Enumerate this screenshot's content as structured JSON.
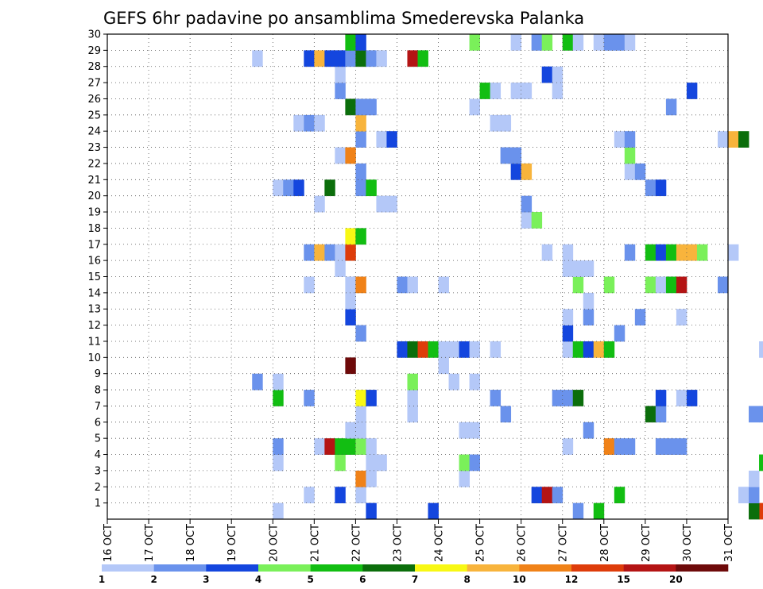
{
  "chart_data": {
    "type": "heatmap",
    "title": "GEFS 6hr padavine po ansamblima Smederevska Palanka",
    "xlabel": "",
    "ylabel": "",
    "x_tick_labels": [
      "16 OCT",
      "17 OCT",
      "18 OCT",
      "19 OCT",
      "20 OCT",
      "21 OCT",
      "22 OCT",
      "23 OCT",
      "24 OCT",
      "25 OCT",
      "26 OCT",
      "27 OCT",
      "28 OCT",
      "29 OCT",
      "30 OCT",
      "31 OCT"
    ],
    "y_tick_labels": [
      "1",
      "2",
      "3",
      "4",
      "5",
      "6",
      "7",
      "8",
      "9",
      "10",
      "11",
      "12",
      "13",
      "14",
      "15",
      "16",
      "17",
      "18",
      "19",
      "20",
      "21",
      "22",
      "23",
      "24",
      "25",
      "26",
      "27",
      "28",
      "29",
      "30"
    ],
    "grid": true,
    "colorbar": {
      "labels": [
        "1",
        "2",
        "3",
        "4",
        "5",
        "6",
        "7",
        "8",
        "10",
        "12",
        "15",
        "20"
      ],
      "colors": [
        "#b4c8f8",
        "#6a92ec",
        "#1446de",
        "#7af05a",
        "#12be12",
        "#0b6e0b",
        "#f8f814",
        "#f8b43c",
        "#f08218",
        "#de3c0a",
        "#b41414",
        "#6e0a0a"
      ]
    },
    "cells": [
      {
        "t": "10-31 18",
        "m": 1,
        "c": "#de3c0a"
      },
      {
        "t": "10-31 12",
        "m": 1,
        "c": "#0b6e0b"
      },
      {
        "t": "10-22 06",
        "m": 1,
        "c": "#1446de"
      },
      {
        "t": "10-23 18",
        "m": 1,
        "c": "#1446de"
      },
      {
        "t": "10-20 00",
        "m": 1,
        "c": "#b4c8f8"
      },
      {
        "t": "10-27 06",
        "m": 1,
        "c": "#6a92ec"
      },
      {
        "t": "10-27 18",
        "m": 1,
        "c": "#12be12"
      },
      {
        "t": "10-20 18",
        "m": 2,
        "c": "#b4c8f8"
      },
      {
        "t": "10-21 12",
        "m": 2,
        "c": "#1446de"
      },
      {
        "t": "10-22 00",
        "m": 2,
        "c": "#b4c8f8"
      },
      {
        "t": "10-26 06",
        "m": 2,
        "c": "#1446de"
      },
      {
        "t": "10-26 12",
        "m": 2,
        "c": "#b41414"
      },
      {
        "t": "10-26 18",
        "m": 2,
        "c": "#6a92ec"
      },
      {
        "t": "10-28 06",
        "m": 2,
        "c": "#12be12"
      },
      {
        "t": "10-31 06",
        "m": 2,
        "c": "#b4c8f8"
      },
      {
        "t": "10-31 12",
        "m": 2,
        "c": "#6a92ec"
      },
      {
        "t": "10-22 00",
        "m": 3,
        "c": "#f08218"
      },
      {
        "t": "10-22 06",
        "m": 3,
        "c": "#b4c8f8"
      },
      {
        "t": "10-24 12",
        "m": 3,
        "c": "#b4c8f8"
      },
      {
        "t": "10-31 12",
        "m": 3,
        "c": "#b4c8f8"
      },
      {
        "t": "10-20 00",
        "m": 4,
        "c": "#b4c8f8"
      },
      {
        "t": "10-21 12",
        "m": 4,
        "c": "#7af05a"
      },
      {
        "t": "10-22 06",
        "m": 4,
        "c": "#b4c8f8"
      },
      {
        "t": "10-22 12",
        "m": 4,
        "c": "#b4c8f8"
      },
      {
        "t": "10-24 12",
        "m": 4,
        "c": "#7af05a"
      },
      {
        "t": "10-24 18",
        "m": 4,
        "c": "#6a92ec"
      },
      {
        "t": "10-31 18",
        "m": 4,
        "c": "#12be12"
      },
      {
        "t": "10-20 00",
        "m": 5,
        "c": "#6a92ec"
      },
      {
        "t": "10-21 00",
        "m": 5,
        "c": "#b4c8f8"
      },
      {
        "t": "10-21 06",
        "m": 5,
        "c": "#b41414"
      },
      {
        "t": "10-21 12",
        "m": 5,
        "c": "#12be12"
      },
      {
        "t": "10-21 18",
        "m": 5,
        "c": "#12be12"
      },
      {
        "t": "10-22 00",
        "m": 5,
        "c": "#7af05a"
      },
      {
        "t": "10-22 06",
        "m": 5,
        "c": "#b4c8f8"
      },
      {
        "t": "10-27 00",
        "m": 5,
        "c": "#b4c8f8"
      },
      {
        "t": "10-28 00",
        "m": 5,
        "c": "#f08218"
      },
      {
        "t": "10-28 06",
        "m": 5,
        "c": "#6a92ec"
      },
      {
        "t": "10-28 12",
        "m": 5,
        "c": "#6a92ec"
      },
      {
        "t": "10-29 06",
        "m": 5,
        "c": "#6a92ec"
      },
      {
        "t": "10-29 12",
        "m": 5,
        "c": "#6a92ec"
      },
      {
        "t": "10-29 18",
        "m": 5,
        "c": "#6a92ec"
      },
      {
        "t": "10-21 18",
        "m": 6,
        "c": "#b4c8f8"
      },
      {
        "t": "10-22 00",
        "m": 6,
        "c": "#b4c8f8"
      },
      {
        "t": "10-24 12",
        "m": 6,
        "c": "#b4c8f8"
      },
      {
        "t": "10-24 18",
        "m": 6,
        "c": "#b4c8f8"
      },
      {
        "t": "10-27 12",
        "m": 6,
        "c": "#6a92ec"
      },
      {
        "t": "10-22 00",
        "m": 7,
        "c": "#b4c8f8"
      },
      {
        "t": "10-23 06",
        "m": 7,
        "c": "#b4c8f8"
      },
      {
        "t": "10-25 12",
        "m": 7,
        "c": "#6a92ec"
      },
      {
        "t": "10-29 00",
        "m": 7,
        "c": "#0b6e0b"
      },
      {
        "t": "10-29 06",
        "m": 7,
        "c": "#6a92ec"
      },
      {
        "t": "10-31 12",
        "m": 7,
        "c": "#6a92ec"
      },
      {
        "t": "10-31 18",
        "m": 7,
        "c": "#6a92ec"
      },
      {
        "t": "10-20 00",
        "m": 8,
        "c": "#12be12"
      },
      {
        "t": "10-20 18",
        "m": 8,
        "c": "#6a92ec"
      },
      {
        "t": "10-22 00",
        "m": 8,
        "c": "#f8f814"
      },
      {
        "t": "10-22 06",
        "m": 8,
        "c": "#1446de"
      },
      {
        "t": "10-23 06",
        "m": 8,
        "c": "#b4c8f8"
      },
      {
        "t": "10-25 06",
        "m": 8,
        "c": "#6a92ec"
      },
      {
        "t": "10-26 18",
        "m": 8,
        "c": "#6a92ec"
      },
      {
        "t": "10-27 00",
        "m": 8,
        "c": "#6a92ec"
      },
      {
        "t": "10-27 06",
        "m": 8,
        "c": "#0b6e0b"
      },
      {
        "t": "10-29 06",
        "m": 8,
        "c": "#1446de"
      },
      {
        "t": "10-29 18",
        "m": 8,
        "c": "#b4c8f8"
      },
      {
        "t": "10-30 00",
        "m": 8,
        "c": "#1446de"
      },
      {
        "t": "10-19 12",
        "m": 9,
        "c": "#6a92ec"
      },
      {
        "t": "10-20 00",
        "m": 9,
        "c": "#b4c8f8"
      },
      {
        "t": "10-23 06",
        "m": 9,
        "c": "#7af05a"
      },
      {
        "t": "10-24 06",
        "m": 9,
        "c": "#b4c8f8"
      },
      {
        "t": "10-24 18",
        "m": 9,
        "c": "#b4c8f8"
      },
      {
        "t": "10-21 18",
        "m": 10,
        "c": "#6e0a0a"
      },
      {
        "t": "10-24 00",
        "m": 10,
        "c": "#b4c8f8"
      },
      {
        "t": "10-23 00",
        "m": 11,
        "c": "#1446de"
      },
      {
        "t": "10-23 06",
        "m": 11,
        "c": "#0b6e0b"
      },
      {
        "t": "10-23 12",
        "m": 11,
        "c": "#de3c0a"
      },
      {
        "t": "10-23 18",
        "m": 11,
        "c": "#12be12"
      },
      {
        "t": "10-24 00",
        "m": 11,
        "c": "#b4c8f8"
      },
      {
        "t": "10-24 06",
        "m": 11,
        "c": "#b4c8f8"
      },
      {
        "t": "10-24 12",
        "m": 11,
        "c": "#1446de"
      },
      {
        "t": "10-24 18",
        "m": 11,
        "c": "#b4c8f8"
      },
      {
        "t": "10-25 06",
        "m": 11,
        "c": "#b4c8f8"
      },
      {
        "t": "10-27 00",
        "m": 11,
        "c": "#b4c8f8"
      },
      {
        "t": "10-27 06",
        "m": 11,
        "c": "#12be12"
      },
      {
        "t": "10-27 12",
        "m": 11,
        "c": "#1446de"
      },
      {
        "t": "10-27 18",
        "m": 11,
        "c": "#f8b43c"
      },
      {
        "t": "10-28 00",
        "m": 11,
        "c": "#12be12"
      },
      {
        "t": "10-31 18",
        "m": 11,
        "c": "#b4c8f8"
      },
      {
        "t": "10-22 00",
        "m": 12,
        "c": "#6a92ec"
      },
      {
        "t": "10-27 00",
        "m": 12,
        "c": "#1446de"
      },
      {
        "t": "10-28 06",
        "m": 12,
        "c": "#6a92ec"
      },
      {
        "t": "10-21 18",
        "m": 13,
        "c": "#1446de"
      },
      {
        "t": "10-27 00",
        "m": 13,
        "c": "#b4c8f8"
      },
      {
        "t": "10-27 12",
        "m": 13,
        "c": "#6a92ec"
      },
      {
        "t": "10-28 18",
        "m": 13,
        "c": "#6a92ec"
      },
      {
        "t": "10-29 18",
        "m": 13,
        "c": "#b4c8f8"
      },
      {
        "t": "10-21 18",
        "m": 14,
        "c": "#b4c8f8"
      },
      {
        "t": "10-27 12",
        "m": 14,
        "c": "#b4c8f8"
      },
      {
        "t": "10-20 18",
        "m": 15,
        "c": "#b4c8f8"
      },
      {
        "t": "10-21 18",
        "m": 15,
        "c": "#b4c8f8"
      },
      {
        "t": "10-22 00",
        "m": 15,
        "c": "#f08218"
      },
      {
        "t": "10-23 00",
        "m": 15,
        "c": "#6a92ec"
      },
      {
        "t": "10-23 06",
        "m": 15,
        "c": "#b4c8f8"
      },
      {
        "t": "10-24 00",
        "m": 15,
        "c": "#b4c8f8"
      },
      {
        "t": "10-27 06",
        "m": 15,
        "c": "#7af05a"
      },
      {
        "t": "10-28 00",
        "m": 15,
        "c": "#7af05a"
      },
      {
        "t": "10-29 00",
        "m": 15,
        "c": "#7af05a"
      },
      {
        "t": "10-29 06",
        "m": 15,
        "c": "#b4c8f8"
      },
      {
        "t": "10-29 12",
        "m": 15,
        "c": "#12be12"
      },
      {
        "t": "10-29 18",
        "m": 15,
        "c": "#b41414"
      },
      {
        "t": "10-30 18",
        "m": 15,
        "c": "#6a92ec"
      },
      {
        "t": "10-21 12",
        "m": 16,
        "c": "#b4c8f8"
      },
      {
        "t": "10-27 00",
        "m": 16,
        "c": "#b4c8f8"
      },
      {
        "t": "10-27 06",
        "m": 16,
        "c": "#b4c8f8"
      },
      {
        "t": "10-27 12",
        "m": 16,
        "c": "#b4c8f8"
      },
      {
        "t": "10-20 18",
        "m": 17,
        "c": "#6a92ec"
      },
      {
        "t": "10-21 00",
        "m": 17,
        "c": "#f8b43c"
      },
      {
        "t": "10-21 06",
        "m": 17,
        "c": "#6a92ec"
      },
      {
        "t": "10-21 12",
        "m": 17,
        "c": "#b4c8f8"
      },
      {
        "t": "10-21 18",
        "m": 17,
        "c": "#de3c0a"
      },
      {
        "t": "10-26 12",
        "m": 17,
        "c": "#b4c8f8"
      },
      {
        "t": "10-27 00",
        "m": 17,
        "c": "#b4c8f8"
      },
      {
        "t": "10-28 12",
        "m": 17,
        "c": "#6a92ec"
      },
      {
        "t": "10-29 00",
        "m": 17,
        "c": "#12be12"
      },
      {
        "t": "10-29 06",
        "m": 17,
        "c": "#1446de"
      },
      {
        "t": "10-29 12",
        "m": 17,
        "c": "#12be12"
      },
      {
        "t": "10-29 18",
        "m": 17,
        "c": "#f8b43c"
      },
      {
        "t": "10-30 00",
        "m": 17,
        "c": "#f8b43c"
      },
      {
        "t": "10-30 06",
        "m": 17,
        "c": "#7af05a"
      },
      {
        "t": "10-31 00",
        "m": 17,
        "c": "#b4c8f8"
      },
      {
        "t": "10-21 18",
        "m": 18,
        "c": "#f8f814"
      },
      {
        "t": "10-22 00",
        "m": 18,
        "c": "#12be12"
      },
      {
        "t": "10-26 00",
        "m": 19,
        "c": "#b4c8f8"
      },
      {
        "t": "10-26 06",
        "m": 19,
        "c": "#7af05a"
      },
      {
        "t": "10-21 00",
        "m": 20,
        "c": "#b4c8f8"
      },
      {
        "t": "10-22 12",
        "m": 20,
        "c": "#b4c8f8"
      },
      {
        "t": "10-22 18",
        "m": 20,
        "c": "#b4c8f8"
      },
      {
        "t": "10-26 00",
        "m": 20,
        "c": "#6a92ec"
      },
      {
        "t": "10-20 00",
        "m": 21,
        "c": "#b4c8f8"
      },
      {
        "t": "10-20 06",
        "m": 21,
        "c": "#6a92ec"
      },
      {
        "t": "10-20 12",
        "m": 21,
        "c": "#1446de"
      },
      {
        "t": "10-21 06",
        "m": 21,
        "c": "#0b6e0b"
      },
      {
        "t": "10-22 00",
        "m": 21,
        "c": "#6a92ec"
      },
      {
        "t": "10-22 06",
        "m": 21,
        "c": "#12be12"
      },
      {
        "t": "10-29 00",
        "m": 21,
        "c": "#6a92ec"
      },
      {
        "t": "10-29 06",
        "m": 21,
        "c": "#1446de"
      },
      {
        "t": "10-22 00",
        "m": 22,
        "c": "#6a92ec"
      },
      {
        "t": "10-25 18",
        "m": 22,
        "c": "#1446de"
      },
      {
        "t": "10-26 00",
        "m": 22,
        "c": "#f8b43c"
      },
      {
        "t": "10-28 12",
        "m": 22,
        "c": "#b4c8f8"
      },
      {
        "t": "10-28 18",
        "m": 22,
        "c": "#6a92ec"
      },
      {
        "t": "10-21 12",
        "m": 23,
        "c": "#b4c8f8"
      },
      {
        "t": "10-21 18",
        "m": 23,
        "c": "#f08218"
      },
      {
        "t": "10-25 12",
        "m": 23,
        "c": "#6a92ec"
      },
      {
        "t": "10-25 18",
        "m": 23,
        "c": "#6a92ec"
      },
      {
        "t": "10-28 12",
        "m": 23,
        "c": "#7af05a"
      },
      {
        "t": "10-22 00",
        "m": 24,
        "c": "#6a92ec"
      },
      {
        "t": "10-22 12",
        "m": 24,
        "c": "#b4c8f8"
      },
      {
        "t": "10-22 18",
        "m": 24,
        "c": "#1446de"
      },
      {
        "t": "10-28 06",
        "m": 24,
        "c": "#b4c8f8"
      },
      {
        "t": "10-28 12",
        "m": 24,
        "c": "#6a92ec"
      },
      {
        "t": "10-30 18",
        "m": 24,
        "c": "#b4c8f8"
      },
      {
        "t": "10-31 00",
        "m": 24,
        "c": "#f8b43c"
      },
      {
        "t": "10-31 06",
        "m": 24,
        "c": "#0b6e0b"
      },
      {
        "t": "10-20 12",
        "m": 25,
        "c": "#b4c8f8"
      },
      {
        "t": "10-20 18",
        "m": 25,
        "c": "#6a92ec"
      },
      {
        "t": "10-21 00",
        "m": 25,
        "c": "#b4c8f8"
      },
      {
        "t": "10-22 00",
        "m": 25,
        "c": "#f8b43c"
      },
      {
        "t": "10-25 06",
        "m": 25,
        "c": "#b4c8f8"
      },
      {
        "t": "10-25 12",
        "m": 25,
        "c": "#b4c8f8"
      },
      {
        "t": "10-21 18",
        "m": 26,
        "c": "#0b6e0b"
      },
      {
        "t": "10-22 00",
        "m": 26,
        "c": "#6a92ec"
      },
      {
        "t": "10-22 06",
        "m": 26,
        "c": "#6a92ec"
      },
      {
        "t": "10-24 18",
        "m": 26,
        "c": "#b4c8f8"
      },
      {
        "t": "10-29 12",
        "m": 26,
        "c": "#6a92ec"
      },
      {
        "t": "10-21 12",
        "m": 27,
        "c": "#6a92ec"
      },
      {
        "t": "10-25 00",
        "m": 27,
        "c": "#12be12"
      },
      {
        "t": "10-25 06",
        "m": 27,
        "c": "#b4c8f8"
      },
      {
        "t": "10-25 18",
        "m": 27,
        "c": "#b4c8f8"
      },
      {
        "t": "10-26 00",
        "m": 27,
        "c": "#b4c8f8"
      },
      {
        "t": "10-26 18",
        "m": 27,
        "c": "#b4c8f8"
      },
      {
        "t": "10-30 00",
        "m": 27,
        "c": "#1446de"
      },
      {
        "t": "10-21 12",
        "m": 28,
        "c": "#b4c8f8"
      },
      {
        "t": "10-26 12",
        "m": 28,
        "c": "#1446de"
      },
      {
        "t": "10-26 18",
        "m": 28,
        "c": "#b4c8f8"
      },
      {
        "t": "10-19 12",
        "m": 29,
        "c": "#b4c8f8"
      },
      {
        "t": "10-20 18",
        "m": 29,
        "c": "#1446de"
      },
      {
        "t": "10-21 00",
        "m": 29,
        "c": "#f8b43c"
      },
      {
        "t": "10-21 06",
        "m": 29,
        "c": "#1446de"
      },
      {
        "t": "10-21 12",
        "m": 29,
        "c": "#1446de"
      },
      {
        "t": "10-21 18",
        "m": 29,
        "c": "#6a92ec"
      },
      {
        "t": "10-22 00",
        "m": 29,
        "c": "#0b6e0b"
      },
      {
        "t": "10-22 06",
        "m": 29,
        "c": "#6a92ec"
      },
      {
        "t": "10-22 12",
        "m": 29,
        "c": "#b4c8f8"
      },
      {
        "t": "10-23 06",
        "m": 29,
        "c": "#b41414"
      },
      {
        "t": "10-23 12",
        "m": 29,
        "c": "#12be12"
      },
      {
        "t": "10-21 18",
        "m": 30,
        "c": "#12be12"
      },
      {
        "t": "10-22 00",
        "m": 30,
        "c": "#1446de"
      },
      {
        "t": "10-24 18",
        "m": 30,
        "c": "#7af05a"
      },
      {
        "t": "10-25 18",
        "m": 30,
        "c": "#b4c8f8"
      },
      {
        "t": "10-26 06",
        "m": 30,
        "c": "#6a92ec"
      },
      {
        "t": "10-26 12",
        "m": 30,
        "c": "#7af05a"
      },
      {
        "t": "10-27 00",
        "m": 30,
        "c": "#12be12"
      },
      {
        "t": "10-27 06",
        "m": 30,
        "c": "#b4c8f8"
      },
      {
        "t": "10-27 18",
        "m": 30,
        "c": "#b4c8f8"
      },
      {
        "t": "10-28 00",
        "m": 30,
        "c": "#6a92ec"
      },
      {
        "t": "10-28 06",
        "m": 30,
        "c": "#6a92ec"
      },
      {
        "t": "10-28 12",
        "m": 30,
        "c": "#b4c8f8"
      }
    ]
  }
}
